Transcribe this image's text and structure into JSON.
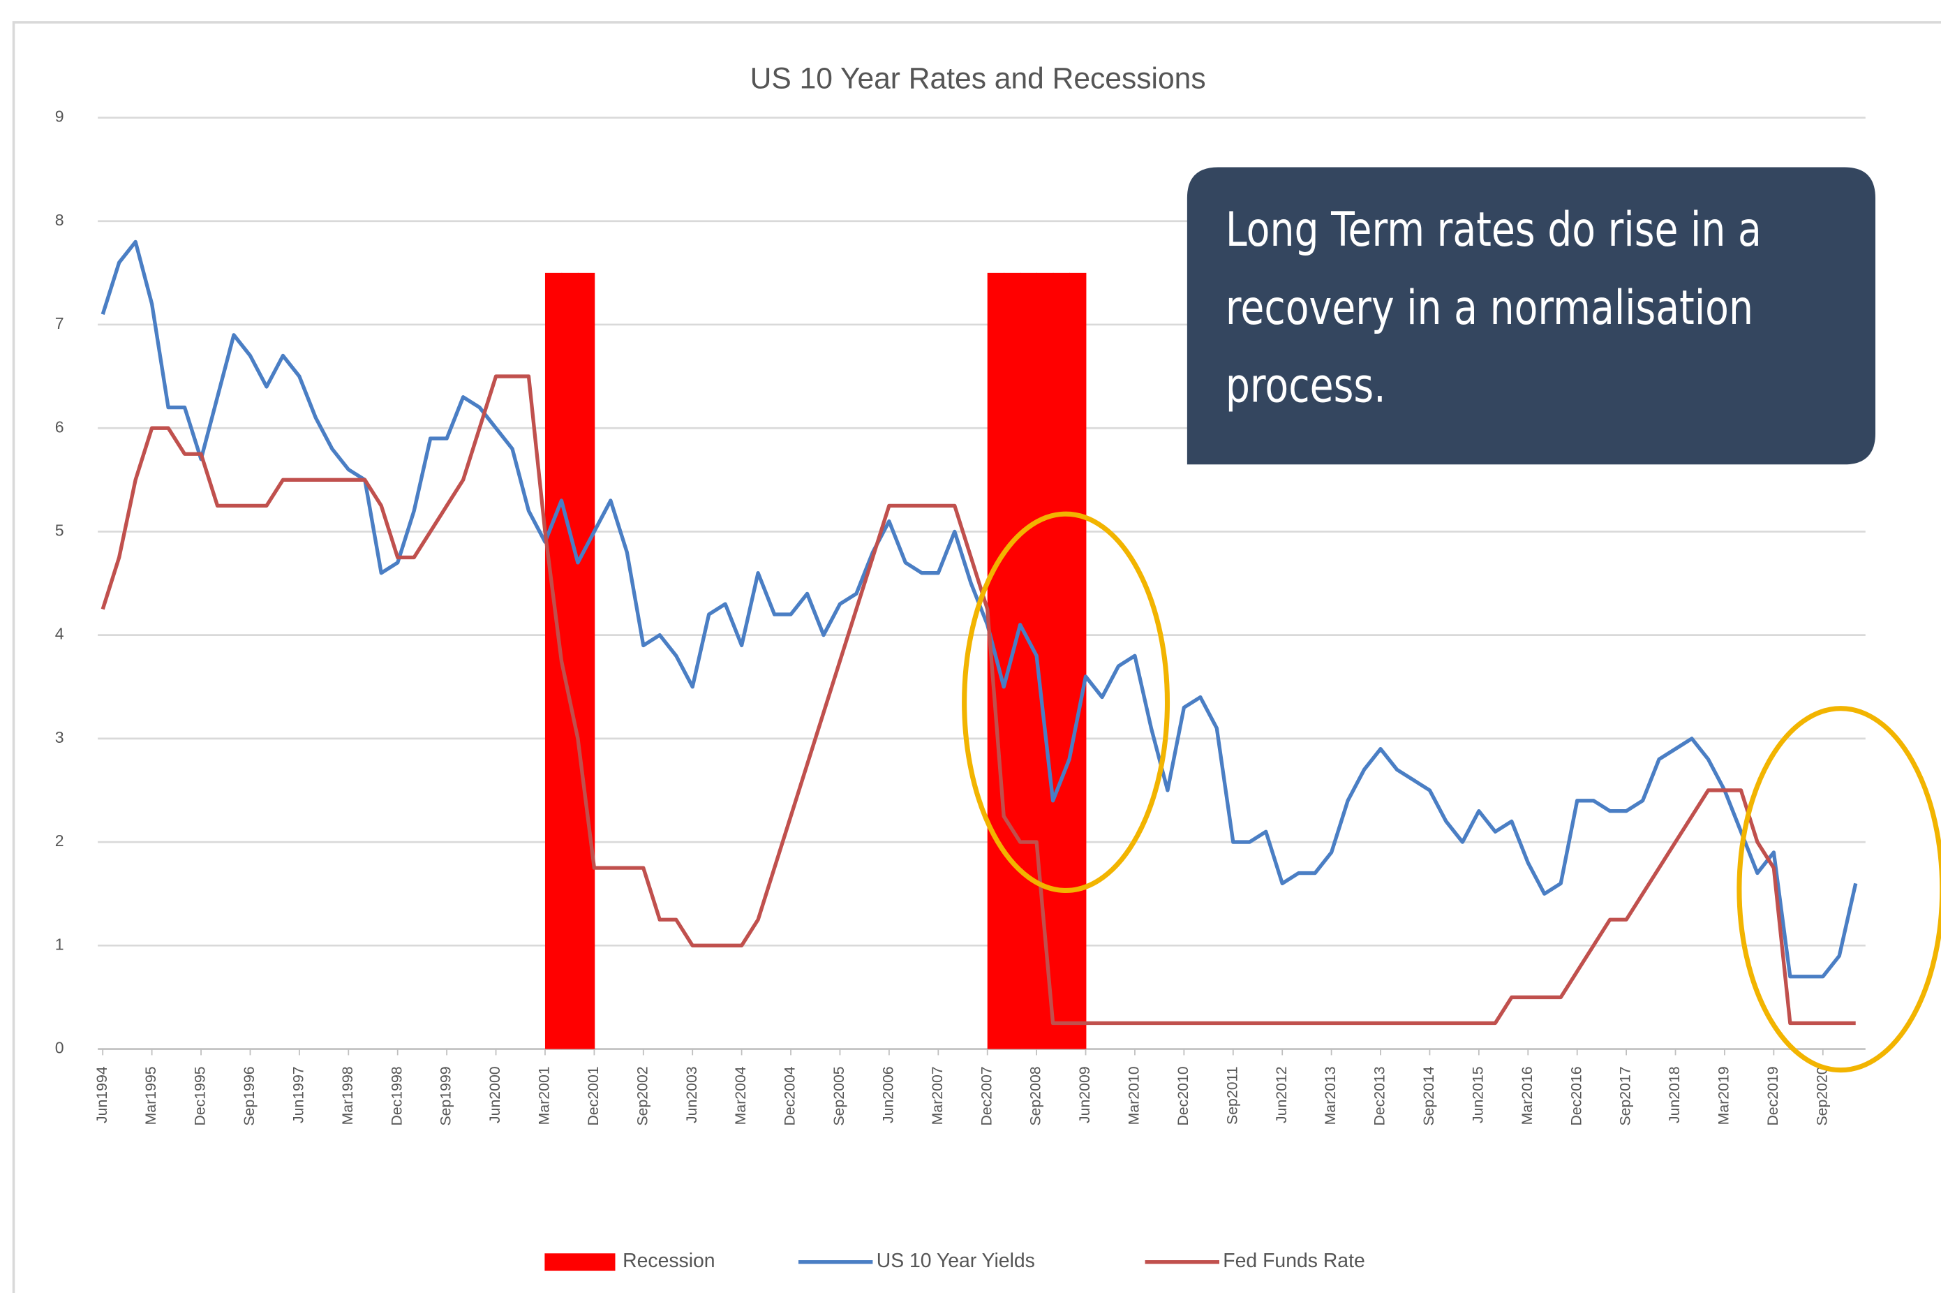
{
  "chart_data": {
    "type": "line",
    "title": "US 10 Year Rates and Recessions",
    "annotation": [
      "Long Term rates do rise in a",
      "recovery in a normalisation",
      "process."
    ],
    "categories": [
      "Jun1994",
      null,
      null,
      "Mar1995",
      null,
      null,
      "Dec1995",
      null,
      null,
      "Sep1996",
      null,
      null,
      "Jun1997",
      null,
      null,
      "Mar1998",
      null,
      null,
      "Dec1998",
      null,
      null,
      "Sep1999",
      null,
      null,
      "Jun2000",
      null,
      null,
      "Mar2001",
      null,
      null,
      "Dec2001",
      null,
      null,
      "Sep2002",
      null,
      null,
      "Jun2003",
      null,
      null,
      "Mar2004",
      null,
      null,
      "Dec2004",
      null,
      null,
      "Sep2005",
      null,
      null,
      "Jun2006",
      null,
      null,
      "Mar2007",
      null,
      null,
      "Dec2007",
      null,
      null,
      "Sep2008",
      null,
      null,
      "Jun2009",
      null,
      null,
      "Mar2010",
      null,
      null,
      "Dec2010",
      null,
      null,
      "Sep2011",
      null,
      null,
      "Jun2012",
      null,
      null,
      "Mar2013",
      null,
      null,
      "Dec2013",
      null,
      null,
      "Sep2014",
      null,
      null,
      "Jun2015",
      null,
      null,
      "Mar2016",
      null,
      null,
      "Dec2016",
      null,
      null,
      "Sep2017",
      null,
      null,
      "Jun2018",
      null,
      null,
      "Mar2019",
      null,
      null,
      "Dec2019",
      null,
      null,
      "Sep2020",
      null,
      null
    ],
    "series": [
      {
        "name": "Recession",
        "type": "bar",
        "color": "#ff0000",
        "values": [
          null,
          null,
          null,
          null,
          null,
          null,
          null,
          null,
          null,
          null,
          null,
          null,
          null,
          null,
          null,
          null,
          null,
          null,
          null,
          null,
          null,
          null,
          null,
          null,
          null,
          null,
          null,
          7.5,
          7.5,
          7.5,
          null,
          null,
          null,
          null,
          null,
          null,
          null,
          null,
          null,
          null,
          null,
          null,
          null,
          null,
          null,
          null,
          null,
          null,
          null,
          null,
          null,
          null,
          null,
          null,
          7.5,
          7.5,
          7.5,
          7.5,
          7.5,
          7.5,
          null,
          null,
          null,
          null,
          null,
          null,
          null,
          null,
          null,
          null,
          null,
          null,
          null,
          null,
          null,
          null,
          null,
          null,
          null,
          null,
          null,
          null,
          null,
          null,
          null,
          null,
          null,
          null,
          null,
          null,
          null,
          null,
          null,
          null,
          null,
          null,
          null,
          null,
          null,
          null,
          null,
          null,
          null,
          null,
          null,
          null,
          null,
          null
        ]
      },
      {
        "name": "US 10 Year Yields",
        "type": "line",
        "color": "#4a7ec4",
        "values": [
          7.1,
          7.6,
          7.8,
          7.2,
          6.2,
          6.2,
          5.7,
          6.3,
          6.9,
          6.7,
          6.4,
          6.7,
          6.5,
          6.1,
          5.8,
          5.6,
          5.5,
          4.6,
          4.7,
          5.2,
          5.9,
          5.9,
          6.3,
          6.2,
          6.0,
          5.8,
          5.2,
          4.9,
          5.3,
          4.7,
          5.0,
          5.3,
          4.8,
          3.9,
          4.0,
          3.8,
          3.5,
          4.2,
          4.3,
          3.9,
          4.6,
          4.2,
          4.2,
          4.4,
          4.0,
          4.3,
          4.4,
          4.8,
          5.1,
          4.7,
          4.6,
          4.6,
          5.0,
          4.5,
          4.1,
          3.5,
          4.1,
          3.8,
          2.4,
          2.8,
          3.6,
          3.4,
          3.7,
          3.8,
          3.1,
          2.5,
          3.3,
          3.4,
          3.1,
          2.0,
          2.0,
          2.1,
          1.6,
          1.7,
          1.7,
          1.9,
          2.4,
          2.7,
          2.9,
          2.7,
          2.6,
          2.5,
          2.2,
          2.0,
          2.3,
          2.1,
          2.2,
          1.8,
          1.5,
          1.6,
          2.4,
          2.4,
          2.3,
          2.3,
          2.4,
          2.8,
          2.9,
          3.0,
          2.8,
          2.5,
          2.1,
          1.7,
          1.9,
          0.7,
          0.7,
          0.7,
          0.9,
          1.6
        ]
      },
      {
        "name": "Fed Funds Rate",
        "type": "line",
        "color": "#c0504d",
        "values": [
          4.25,
          4.75,
          5.5,
          6,
          6,
          5.75,
          5.75,
          5.25,
          5.25,
          5.25,
          5.25,
          5.5,
          5.5,
          5.5,
          5.5,
          5.5,
          5.5,
          5.25,
          4.75,
          4.75,
          5,
          5.25,
          5.5,
          6,
          6.5,
          6.5,
          6.5,
          5,
          3.75,
          3,
          1.75,
          1.75,
          1.75,
          1.75,
          1.25,
          1.25,
          1,
          1,
          1,
          1,
          1.25,
          1.75,
          2.25,
          2.75,
          3.25,
          3.75,
          4.25,
          4.75,
          5.25,
          5.25,
          5.25,
          5.25,
          5.25,
          4.75,
          4.25,
          2.25,
          2,
          2,
          0.25,
          0.25,
          0.25,
          0.25,
          0.25,
          0.25,
          0.25,
          0.25,
          0.25,
          0.25,
          0.25,
          0.25,
          0.25,
          0.25,
          0.25,
          0.25,
          0.25,
          0.25,
          0.25,
          0.25,
          0.25,
          0.25,
          0.25,
          0.25,
          0.25,
          0.25,
          0.25,
          0.25,
          0.5,
          0.5,
          0.5,
          0.5,
          0.75,
          1,
          1.25,
          1.25,
          1.5,
          1.75,
          2,
          2.25,
          2.5,
          2.5,
          2.5,
          2,
          1.75,
          0.25,
          0.25,
          0.25,
          0.25,
          0.25
        ]
      }
    ],
    "ylim": [
      0,
      9
    ],
    "yticks": [
      0,
      1,
      2,
      3,
      4,
      5,
      6,
      7,
      8,
      9
    ],
    "grid": true,
    "legend": "bottom"
  }
}
